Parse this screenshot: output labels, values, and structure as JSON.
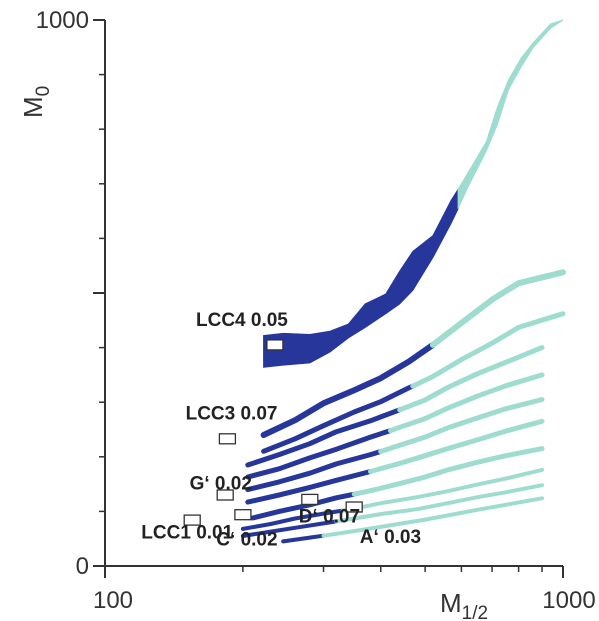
{
  "chart_data": {
    "type": "scatter",
    "title": "",
    "xlabel": {
      "main": "M",
      "sub": "1/2"
    },
    "ylabel": {
      "main": "M",
      "sub": "0"
    },
    "x_scale": "log",
    "xlim": [
      100,
      1000
    ],
    "ylim": [
      0,
      1000
    ],
    "x_ticks": [
      "100",
      "1000"
    ],
    "y_ticks": [
      "0",
      "1000"
    ],
    "grid": false,
    "colors": {
      "dark": "#26369a",
      "light": "#9fdcd0",
      "marker_fill": "#ffffff",
      "marker_stroke": "#333333"
    },
    "regions": [
      {
        "id": "lcc4-band",
        "lower": [
          [
            222,
            364
          ],
          [
            245,
            368
          ],
          [
            280,
            372
          ],
          [
            310,
            392
          ],
          [
            340,
            418
          ],
          [
            370,
            437
          ],
          [
            410,
            462
          ],
          [
            440,
            480
          ],
          [
            470,
            505
          ],
          [
            520,
            565
          ],
          [
            570,
            628
          ],
          [
            620,
            694
          ],
          [
            680,
            760
          ],
          [
            720,
            810
          ],
          [
            760,
            872
          ],
          [
            810,
            914
          ],
          [
            860,
            949
          ],
          [
            940,
            985
          ],
          [
            1000,
            1000
          ]
        ],
        "upper": [
          [
            222,
            422
          ],
          [
            245,
            426
          ],
          [
            280,
            424
          ],
          [
            310,
            430
          ],
          [
            340,
            443
          ],
          [
            370,
            480
          ],
          [
            410,
            498
          ],
          [
            440,
            540
          ],
          [
            470,
            576
          ],
          [
            520,
            605
          ],
          [
            570,
            670
          ],
          [
            620,
            720
          ],
          [
            680,
            777
          ],
          [
            720,
            842
          ],
          [
            760,
            890
          ],
          [
            810,
            930
          ],
          [
            860,
            958
          ],
          [
            940,
            993
          ],
          [
            1000,
            1000
          ]
        ],
        "segments": [
          {
            "x_from": 222,
            "x_to": 590,
            "color": "dark"
          },
          {
            "x_from": 590,
            "x_to": 1000,
            "color": "light"
          }
        ]
      },
      {
        "id": "lcc3-band",
        "points": [
          [
            222,
            240
          ],
          [
            260,
            267
          ],
          [
            300,
            298
          ],
          [
            350,
            322
          ],
          [
            400,
            344
          ],
          [
            460,
            374
          ],
          [
            520,
            405
          ],
          [
            600,
            445
          ],
          [
            700,
            488
          ],
          [
            800,
            518
          ],
          [
            1000,
            538
          ]
        ],
        "width": 6,
        "segments": [
          {
            "x_from": 222,
            "x_to": 520,
            "color": "dark"
          },
          {
            "x_from": 520,
            "x_to": 1000,
            "color": "light"
          }
        ]
      },
      {
        "id": "band-3",
        "points": [
          [
            222,
            210
          ],
          [
            260,
            233
          ],
          [
            300,
            257
          ],
          [
            350,
            282
          ],
          [
            400,
            301
          ],
          [
            460,
            326
          ],
          [
            520,
            347
          ],
          [
            600,
            378
          ],
          [
            700,
            408
          ],
          [
            800,
            437
          ],
          [
            1000,
            462
          ]
        ],
        "width": 5,
        "segments": [
          {
            "x_from": 222,
            "x_to": 470,
            "color": "dark"
          },
          {
            "x_from": 470,
            "x_to": 1000,
            "color": "light"
          }
        ]
      },
      {
        "id": "band-4",
        "points": [
          [
            205,
            185
          ],
          [
            240,
            204
          ],
          [
            280,
            224
          ],
          [
            320,
            246
          ],
          [
            380,
            266
          ],
          [
            440,
            286
          ],
          [
            500,
            304
          ],
          [
            560,
            327
          ],
          [
            650,
            352
          ],
          [
            750,
            373
          ],
          [
            900,
            400
          ]
        ],
        "width": 5,
        "segments": [
          {
            "x_from": 205,
            "x_to": 440,
            "color": "dark"
          },
          {
            "x_from": 440,
            "x_to": 900,
            "color": "light"
          }
        ]
      },
      {
        "id": "band-5",
        "points": [
          [
            205,
            163
          ],
          [
            240,
            178
          ],
          [
            280,
            198
          ],
          [
            320,
            214
          ],
          [
            380,
            236
          ],
          [
            440,
            254
          ],
          [
            500,
            270
          ],
          [
            560,
            289
          ],
          [
            650,
            311
          ],
          [
            750,
            330
          ],
          [
            900,
            350
          ]
        ],
        "width": 5,
        "segments": [
          {
            "x_from": 205,
            "x_to": 420,
            "color": "dark"
          },
          {
            "x_from": 420,
            "x_to": 900,
            "color": "light"
          }
        ]
      },
      {
        "id": "band-6",
        "points": [
          [
            205,
            140
          ],
          [
            240,
            154
          ],
          [
            280,
            170
          ],
          [
            320,
            187
          ],
          [
            380,
            204
          ],
          [
            440,
            221
          ],
          [
            500,
            236
          ],
          [
            560,
            253
          ],
          [
            650,
            271
          ],
          [
            750,
            288
          ],
          [
            900,
            305
          ]
        ],
        "width": 5,
        "segments": [
          {
            "x_from": 205,
            "x_to": 400,
            "color": "dark"
          },
          {
            "x_from": 400,
            "x_to": 900,
            "color": "light"
          }
        ]
      },
      {
        "id": "band-7",
        "points": [
          [
            205,
            117
          ],
          [
            240,
            130
          ],
          [
            280,
            144
          ],
          [
            320,
            157
          ],
          [
            380,
            173
          ],
          [
            440,
            188
          ],
          [
            500,
            202
          ],
          [
            560,
            215
          ],
          [
            650,
            231
          ],
          [
            750,
            247
          ],
          [
            900,
            265
          ]
        ],
        "width": 5,
        "segments": [
          {
            "x_from": 205,
            "x_to": 380,
            "color": "dark"
          },
          {
            "x_from": 380,
            "x_to": 900,
            "color": "light"
          }
        ]
      },
      {
        "id": "band-8",
        "points": [
          [
            210,
            88
          ],
          [
            240,
            100
          ],
          [
            280,
            112
          ],
          [
            320,
            125
          ],
          [
            380,
            138
          ],
          [
            440,
            151
          ],
          [
            500,
            163
          ],
          [
            560,
            176
          ],
          [
            650,
            190
          ],
          [
            750,
            202
          ],
          [
            900,
            215
          ]
        ],
        "width": 5,
        "segments": [
          {
            "x_from": 210,
            "x_to": 350,
            "color": "dark"
          },
          {
            "x_from": 350,
            "x_to": 900,
            "color": "light"
          }
        ]
      },
      {
        "id": "band-9",
        "points": [
          [
            200,
            68
          ],
          [
            230,
            77
          ],
          [
            260,
            87
          ],
          [
            300,
            96
          ],
          [
            350,
            105
          ],
          [
            400,
            115
          ],
          [
            480,
            126
          ],
          [
            560,
            137
          ],
          [
            650,
            149
          ],
          [
            750,
            160
          ],
          [
            900,
            176
          ]
        ],
        "width": 4,
        "segments": [
          {
            "x_from": 200,
            "x_to": 330,
            "color": "dark"
          },
          {
            "x_from": 330,
            "x_to": 900,
            "color": "light"
          }
        ]
      },
      {
        "id": "band-10",
        "points": [
          [
            200,
            55
          ],
          [
            230,
            63
          ],
          [
            260,
            70
          ],
          [
            300,
            78
          ],
          [
            350,
            87
          ],
          [
            400,
            95
          ],
          [
            480,
            104
          ],
          [
            560,
            115
          ],
          [
            650,
            126
          ],
          [
            750,
            135
          ],
          [
            900,
            148
          ]
        ],
        "width": 4,
        "segments": [
          {
            "x_from": 200,
            "x_to": 320,
            "color": "dark"
          },
          {
            "x_from": 320,
            "x_to": 900,
            "color": "light"
          }
        ]
      },
      {
        "id": "band-11",
        "points": [
          [
            245,
            45
          ],
          [
            280,
            52
          ],
          [
            320,
            59
          ],
          [
            370,
            67
          ],
          [
            430,
            76
          ],
          [
            500,
            85
          ],
          [
            580,
            95
          ],
          [
            650,
            103
          ],
          [
            750,
            112
          ],
          [
            900,
            124
          ]
        ],
        "width": 4,
        "segments": [
          {
            "x_from": 245,
            "x_to": 300,
            "color": "dark"
          },
          {
            "x_from": 300,
            "x_to": 900,
            "color": "light"
          }
        ]
      }
    ],
    "points": [
      {
        "label": "LCC4  0.05",
        "x": 235,
        "y": 405,
        "label_x": 158,
        "label_y": 440
      },
      {
        "label": "LCC3 0.07",
        "x": 185,
        "y": 233,
        "label_x": 150,
        "label_y": 268
      },
      {
        "label": "G‘ 0.02",
        "x": 183,
        "y": 130,
        "label_x": 153,
        "label_y": 140
      },
      {
        "label": "LCC1 0.01",
        "x": 155,
        "y": 84,
        "label_x": 120,
        "label_y": 50
      },
      {
        "label": "C‘ 0.02",
        "x": 200,
        "y": 94,
        "label_x": 175,
        "label_y": 38
      },
      {
        "label": "D‘ 0.07",
        "x": 280,
        "y": 122,
        "label_x": 265,
        "label_y": 80
      },
      {
        "label": "A‘ 0.03",
        "x": 350,
        "y": 108,
        "label_x": 360,
        "label_y": 42
      }
    ]
  }
}
